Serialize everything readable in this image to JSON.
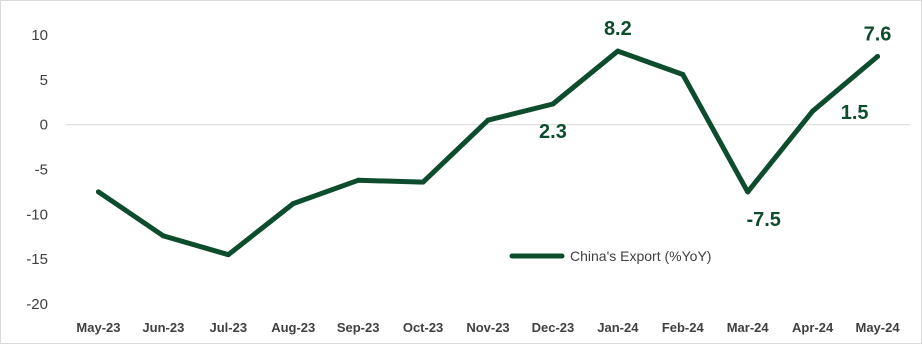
{
  "chart_data": {
    "type": "line",
    "title": "",
    "xlabel": "",
    "ylabel": "",
    "categories": [
      "May-23",
      "Jun-23",
      "Jul-23",
      "Aug-23",
      "Sep-23",
      "Oct-23",
      "Nov-23",
      "Dec-23",
      "Jan-24",
      "Feb-24",
      "Mar-24",
      "Apr-24",
      "May-24"
    ],
    "series": [
      {
        "name": "China's Export (%YoY)",
        "values": [
          -7.5,
          -12.4,
          -14.5,
          -8.8,
          -6.2,
          -6.4,
          0.5,
          2.3,
          8.2,
          5.6,
          -7.5,
          1.5,
          7.6
        ],
        "color": "#0d4d2e"
      }
    ],
    "data_labels": [
      {
        "index": 7,
        "text": "2.3"
      },
      {
        "index": 8,
        "text": "8.2"
      },
      {
        "index": 10,
        "text": "-7.5"
      },
      {
        "index": 11,
        "text": "1.5"
      },
      {
        "index": 12,
        "text": "7.6"
      }
    ],
    "yticks": [
      "10",
      "5",
      "0",
      "-5",
      "-10",
      "-15",
      "-20"
    ],
    "ylim": [
      -20,
      10
    ],
    "grid": false,
    "legend_position": "bottom-center-right"
  }
}
